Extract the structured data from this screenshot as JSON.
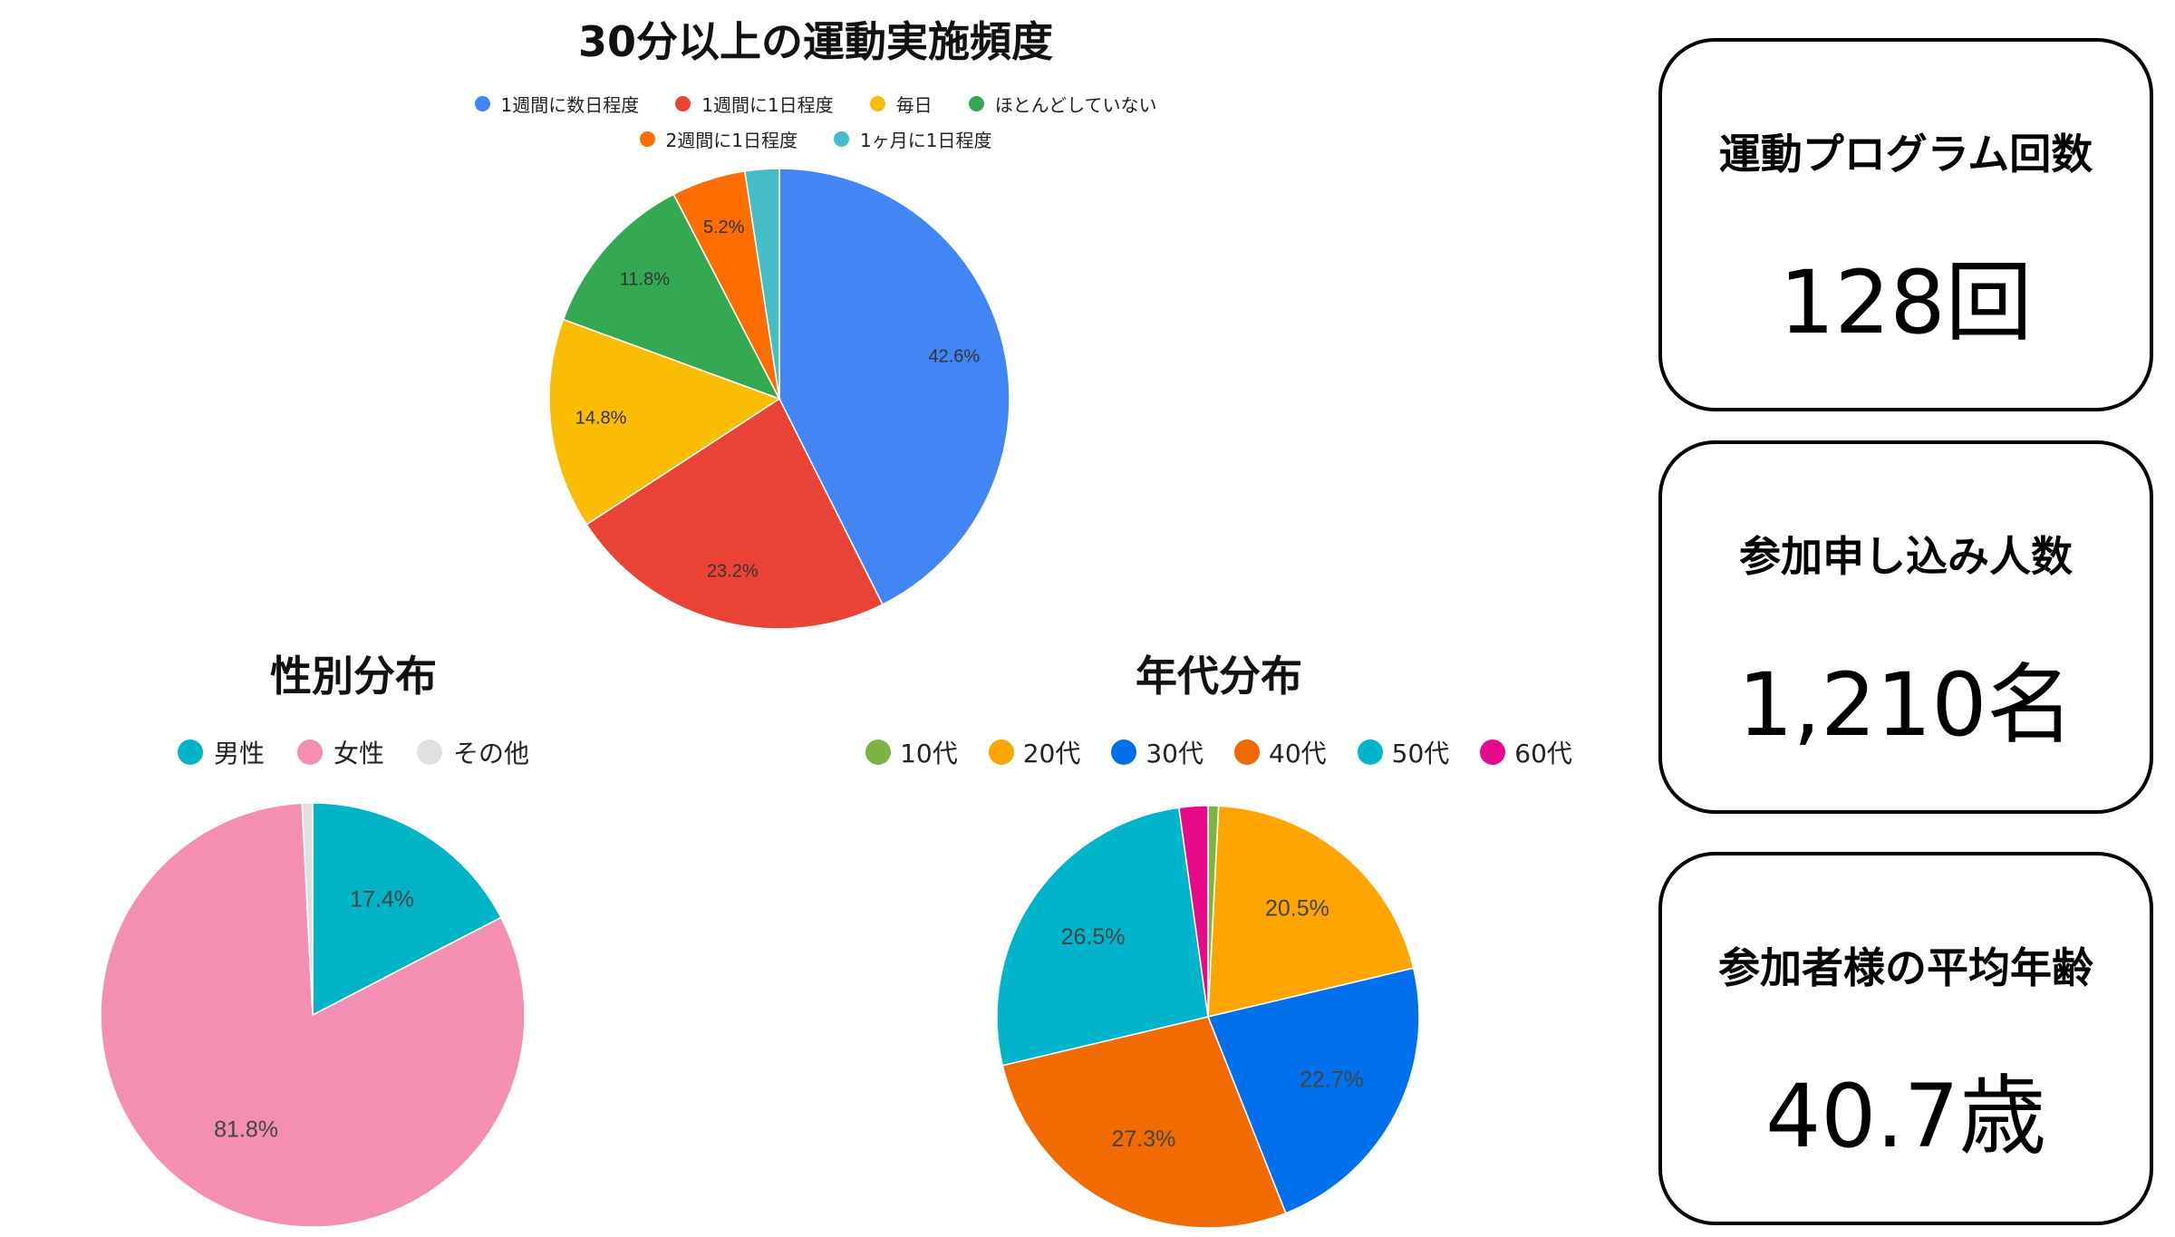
{
  "chart_data": [
    {
      "type": "pie",
      "title": "30分以上の運動実施頻度",
      "legend_position": "top",
      "categories": [
        "1週間に数日程度",
        "1週間に1日程度",
        "毎日",
        "ほとんどしていない",
        "2週間に1日程度",
        "1ヶ月に1日程度"
      ],
      "values": [
        42.6,
        23.2,
        14.8,
        11.8,
        5.2,
        2.4
      ],
      "labels": [
        "42.6%",
        "23.2%",
        "14.8%",
        "11.8%",
        "5.2%",
        ""
      ],
      "colors": [
        "#4285F4",
        "#EA4335",
        "#FBBC04",
        "#34A853",
        "#FF6D01",
        "#46BDC6"
      ]
    },
    {
      "type": "pie",
      "title": "性別分布",
      "legend_position": "top",
      "categories": [
        "男性",
        "女性",
        "その他"
      ],
      "values": [
        17.4,
        81.8,
        0.8
      ],
      "labels": [
        "17.4%",
        "81.8%",
        ""
      ],
      "colors": [
        "#00B3C6",
        "#F48FB1",
        "#E0E0E0"
      ]
    },
    {
      "type": "pie",
      "title": "年代分布",
      "legend_position": "top",
      "categories": [
        "10代",
        "20代",
        "30代",
        "40代",
        "50代",
        "60代"
      ],
      "values": [
        0.8,
        20.5,
        22.7,
        27.3,
        26.5,
        2.2
      ],
      "labels": [
        "",
        "20.5%",
        "22.7%",
        "27.3%",
        "26.5%",
        ""
      ],
      "colors": [
        "#7CB342",
        "#FFA500",
        "#0070EC",
        "#F26B00",
        "#00B4CC",
        "#E8088A"
      ]
    }
  ],
  "stats": {
    "programs": {
      "label": "運動プログラム回数",
      "value": "128回"
    },
    "applicants": {
      "label": "参加申し込み人数",
      "value": "1,210名"
    },
    "avg_age": {
      "label": "参加者様の平均年齢",
      "value": "40.7歳"
    }
  }
}
